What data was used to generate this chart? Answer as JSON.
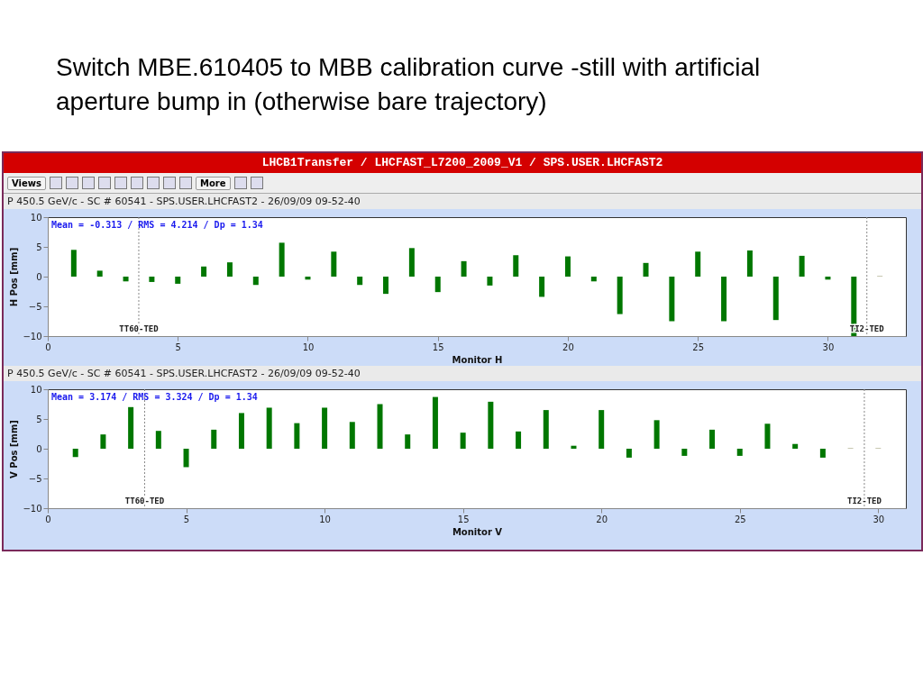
{
  "chart_data": [
    {
      "type": "other",
      "title": "Switch MBE.610405 to MBB calibration curve -still with artificial aperture bump in (otherwise bare trajectory)",
      "annotations": [
        "LHCB1Transfer / LHCFAST_L7200_2009_V1 / SPS.USER.LHCFAST2",
        "Views",
        "More"
      ]
    },
    {
      "type": "bar",
      "subtitle": "P 450.5 GeV/c - SC # 60541 - SPS.USER.LHCFAST2 - 26/09/09 09-52-40",
      "xlabel": "Monitor H",
      "ylabel": "H Pos [mm]",
      "x": [
        1,
        2,
        3,
        4,
        5,
        6,
        7,
        8,
        9,
        10,
        11,
        12,
        13,
        14,
        15,
        16,
        17,
        18,
        19,
        20,
        21,
        22,
        23,
        24,
        25,
        26,
        27,
        28,
        29,
        30,
        31,
        32
      ],
      "values": [
        4.5,
        1.0,
        -0.8,
        -0.9,
        -1.2,
        1.7,
        2.4,
        -1.4,
        5.7,
        -0.5,
        4.2,
        -1.4,
        -2.9,
        4.8,
        -2.6,
        2.6,
        -1.5,
        3.6,
        -3.4,
        3.4,
        -0.8,
        -6.3,
        2.3,
        -7.5,
        4.2,
        -7.5,
        4.4,
        -7.3,
        3.5,
        -0.5,
        -10,
        0.1
      ],
      "colors": [
        "#007700",
        "#007700",
        "#007700",
        "#007700",
        "#007700",
        "#007700",
        "#007700",
        "#007700",
        "#007700",
        "#007700",
        "#007700",
        "#007700",
        "#007700",
        "#007700",
        "#007700",
        "#007700",
        "#007700",
        "#007700",
        "#007700",
        "#007700",
        "#007700",
        "#007700",
        "#007700",
        "#007700",
        "#007700",
        "#007700",
        "#007700",
        "#007700",
        "#007700",
        "#007700",
        "#007700",
        "#aaaa88"
      ],
      "xlim": [
        0,
        33
      ],
      "xticks": [
        0,
        5,
        10,
        15,
        20,
        25,
        30
      ],
      "ylim": [
        -10,
        10
      ],
      "yticks": [
        -10,
        -5,
        0,
        5,
        10
      ],
      "ref_lines": [
        {
          "axis": "x",
          "value": 3.5,
          "label": "TT60-TED",
          "color": "#888888",
          "line_style": "dotted"
        },
        {
          "axis": "x",
          "value": 31.5,
          "label": "TI2-TED",
          "color": "#888888",
          "line_style": "dotted"
        }
      ],
      "annotations": [
        "Mean =   -0.313 / RMS =   4.214 / Dp =   1.34"
      ]
    },
    {
      "type": "bar",
      "subtitle": "P 450.5 GeV/c - SC # 60541 - SPS.USER.LHCFAST2 - 26/09/09 09-52-40",
      "xlabel": "Monitor V",
      "ylabel": "V Pos [mm]",
      "x": [
        1,
        2,
        3,
        4,
        5,
        6,
        7,
        8,
        9,
        10,
        11,
        12,
        13,
        14,
        15,
        16,
        17,
        18,
        19,
        20,
        21,
        22,
        23,
        24,
        25,
        26,
        27,
        28,
        29,
        30
      ],
      "values": [
        -1.4,
        2.4,
        7.0,
        3.0,
        -3.1,
        3.2,
        6.0,
        6.9,
        4.3,
        6.9,
        4.5,
        7.5,
        2.4,
        8.7,
        2.7,
        7.9,
        2.9,
        6.5,
        0.5,
        6.5,
        -1.5,
        4.8,
        -1.2,
        3.2,
        -1.2,
        4.2,
        0.8,
        -1.5,
        0.1,
        0.1
      ],
      "colors": [
        "#007700",
        "#007700",
        "#007700",
        "#007700",
        "#007700",
        "#007700",
        "#007700",
        "#007700",
        "#007700",
        "#007700",
        "#007700",
        "#007700",
        "#007700",
        "#007700",
        "#007700",
        "#007700",
        "#007700",
        "#007700",
        "#007700",
        "#007700",
        "#007700",
        "#007700",
        "#007700",
        "#007700",
        "#007700",
        "#007700",
        "#007700",
        "#007700",
        "#aaaa88",
        "#aaaa88"
      ],
      "xlim": [
        0,
        31
      ],
      "xticks": [
        0,
        5,
        10,
        15,
        20,
        25,
        30
      ],
      "ylim": [
        -10,
        10
      ],
      "yticks": [
        -10,
        -5,
        0,
        5,
        10
      ],
      "ref_lines": [
        {
          "axis": "x",
          "value": 3.5,
          "label": "TT60-TED",
          "color": "#888888",
          "line_style": "dotted"
        },
        {
          "axis": "x",
          "value": 29.5,
          "label": "TI2-TED",
          "color": "#888888",
          "line_style": "dotted"
        }
      ],
      "annotations": [
        "Mean =   3.174 / RMS =   3.324 / Dp =   1.34"
      ]
    }
  ]
}
